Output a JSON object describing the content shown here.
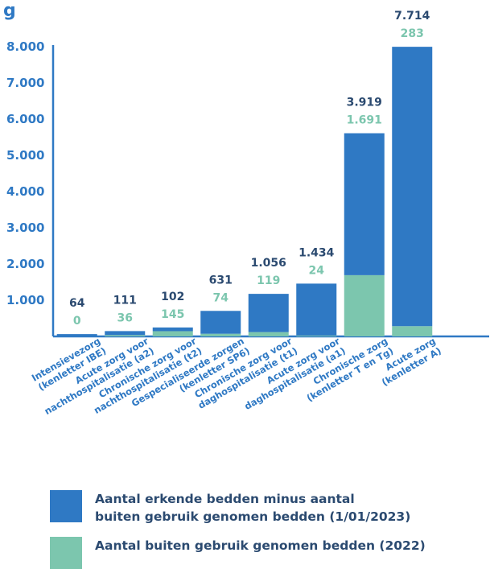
{
  "chart_data": {
    "type": "bar",
    "stacked": true,
    "title_fragment": "g",
    "categories": [
      [
        "Intensievezorg",
        "(kenletter IBE)"
      ],
      [
        "Acute zorg voor",
        "nachthospitalisatie (a2)"
      ],
      [
        "Chronische zorg voor",
        "nachthospitalisatie (t2)"
      ],
      [
        "Gespecialiseerde zorgen",
        "(kenletter SP6)"
      ],
      [
        "Chronische zorg voor",
        "daghospitalisatie (t1)"
      ],
      [
        "Acute zorg voor",
        "daghospitalisatie (a1)"
      ],
      [
        "Chronische zorg",
        "(kenletter T en Tg)"
      ],
      [
        "Acute zorg",
        "(kenletter A)"
      ]
    ],
    "series": [
      {
        "name_lines": [
          "Aantal erkende bedden minus aantal",
          "buiten gebruik genomen bedden (1/01/2023)"
        ],
        "color": "#2f79c4",
        "values": [
          64,
          111,
          102,
          631,
          1056,
          1434,
          3919,
          7714
        ],
        "labels": [
          "64",
          "111",
          "102",
          "631",
          "1.056",
          "1.434",
          "3.919",
          "7.714"
        ]
      },
      {
        "name_lines": [
          "Aantal buiten gebruik genomen bedden (2022)"
        ],
        "color": "#7cc6ae",
        "values": [
          0,
          36,
          145,
          74,
          119,
          24,
          1691,
          283
        ],
        "labels": [
          "0",
          "36",
          "145",
          "74",
          "119",
          "24",
          "1.691",
          "283"
        ]
      }
    ],
    "yticks": [
      "1.000",
      "2.000",
      "3.000",
      "4.000",
      "5.000",
      "6.000",
      "7.000",
      "8.000"
    ],
    "ytick_values": [
      1000,
      2000,
      3000,
      4000,
      5000,
      6000,
      7000,
      8000
    ],
    "ylim": [
      0,
      8000
    ],
    "axis_color": "#2f79c4",
    "blue_label_color": "#2b4a70",
    "green_label_color": "#7cc6ae"
  }
}
